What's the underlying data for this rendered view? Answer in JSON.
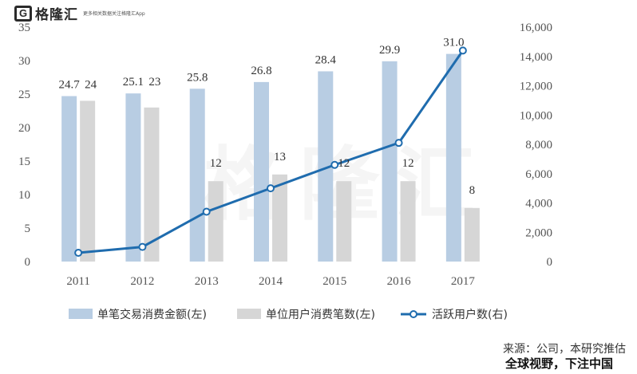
{
  "brand": {
    "mark": "G",
    "name": "格隆汇",
    "tagline": "更多相关数据关注格隆汇App"
  },
  "watermark": "格隆汇",
  "source": "来源：公司，本研究推估",
  "caption": "全球视野，下注中国",
  "colors": {
    "bar1": "#b8cde3",
    "bar2": "#d6d6d6",
    "line": "#1f6cae"
  },
  "chart_data": {
    "type": "bar",
    "categories": [
      "2011",
      "2012",
      "2013",
      "2014",
      "2015",
      "2016",
      "2017"
    ],
    "y_left": {
      "ylim": [
        0,
        35
      ],
      "ticks": [
        0,
        5,
        10,
        15,
        20,
        25,
        30,
        35
      ]
    },
    "y_right": {
      "ylim": [
        0,
        16000
      ],
      "ticks": [
        "0",
        "2,000",
        "4,000",
        "6,000",
        "8,000",
        "10,000",
        "12,000",
        "14,000",
        "16,000"
      ]
    },
    "series": [
      {
        "name": "单笔交易消费金额(左)",
        "type": "bar",
        "axis": "left",
        "values": [
          24.7,
          25.1,
          25.8,
          26.8,
          28.4,
          29.9,
          31.0
        ],
        "labels": [
          "24.7",
          "25.1",
          "25.8",
          "26.8",
          "28.4",
          "29.9",
          "31.0"
        ]
      },
      {
        "name": "单位用户消费笔数(左)",
        "type": "bar",
        "axis": "left",
        "values": [
          24,
          23,
          12,
          13,
          12,
          12,
          8
        ],
        "labels": [
          "24",
          "23",
          "12",
          "13",
          "12",
          "12",
          "8"
        ]
      },
      {
        "name": "活跃用户数(右)",
        "type": "line",
        "axis": "right",
        "values": [
          600,
          1000,
          3400,
          5000,
          6600,
          8100,
          14400
        ]
      }
    ],
    "legend_position": "bottom",
    "grid": false
  }
}
